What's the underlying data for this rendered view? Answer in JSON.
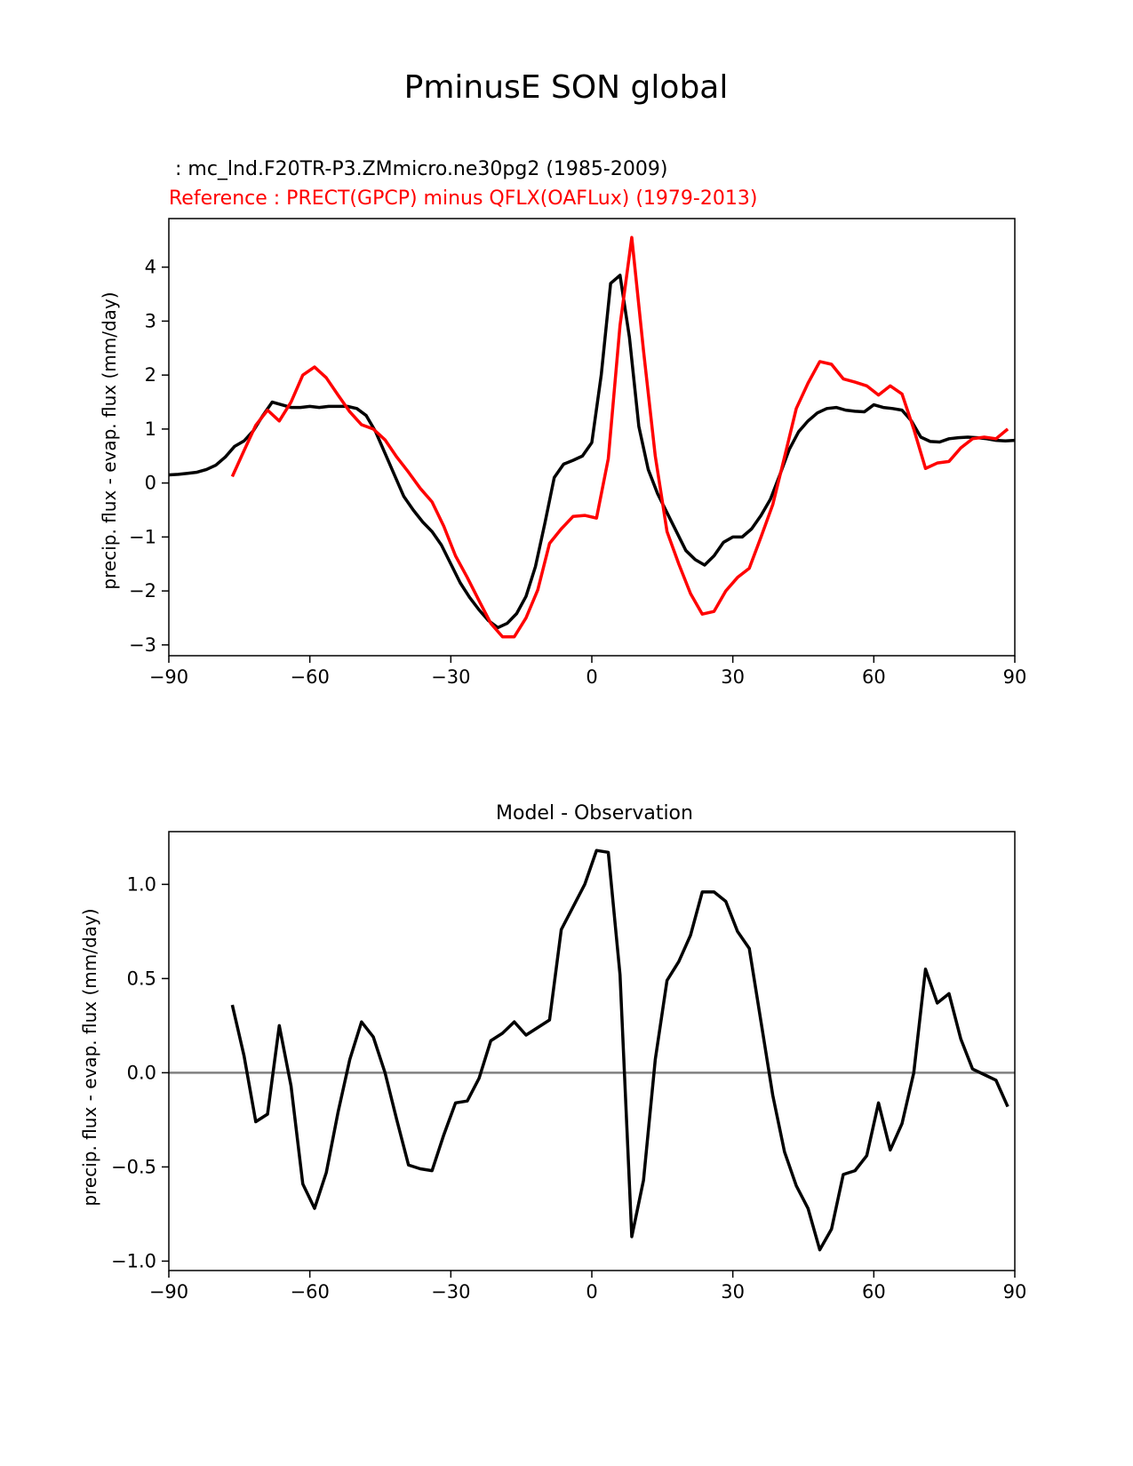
{
  "figure": {
    "suptitle": "PminusE SON global"
  },
  "chart_data": [
    {
      "type": "line",
      "title_test": " : mc_lnd.F20TR-P3.ZMmicro.ne30pg2 (1985-2009)",
      "title_ref": "Reference : PRECT(GPCP) minus QFLX(OAFLux) (1979-2013)",
      "xlabel": "",
      "ylabel": "precip. flux - evap. flux (mm/day)",
      "xlim": [
        -90,
        90
      ],
      "ylim": [
        -3.2,
        4.9
      ],
      "xticks": [
        -90,
        -60,
        -30,
        0,
        30,
        60,
        90
      ],
      "xtick_labels": [
        "−90",
        "−60",
        "−30",
        "0",
        "30",
        "60",
        "90"
      ],
      "yticks": [
        -3,
        -2,
        -1,
        0,
        1,
        2,
        3,
        4
      ],
      "ytick_labels": [
        "−3",
        "−2",
        "−1",
        "0",
        "1",
        "2",
        "3",
        "4"
      ],
      "series": [
        {
          "name": "test",
          "color": "#000000",
          "x": [
            -90,
            -88,
            -86,
            -84,
            -82,
            -80,
            -78,
            -76,
            -74,
            -72,
            -70,
            -68,
            -66,
            -64,
            -62,
            -60,
            -58,
            -56,
            -54,
            -52,
            -50,
            -48,
            -46,
            -44,
            -42,
            -40,
            -38,
            -36,
            -34,
            -32,
            -30,
            -28,
            -26,
            -24,
            -22,
            -20,
            -18,
            -16,
            -14,
            -12,
            -10,
            -8,
            -6,
            -4,
            -2,
            0,
            2,
            4,
            6,
            8,
            10,
            12,
            14,
            16,
            18,
            20,
            22,
            24,
            26,
            28,
            30,
            32,
            34,
            36,
            38,
            40,
            42,
            44,
            46,
            48,
            50,
            52,
            54,
            56,
            58,
            60,
            62,
            64,
            66,
            68,
            70,
            72,
            74,
            76,
            78,
            80,
            82,
            84,
            86,
            88,
            90
          ],
          "values": [
            0.15,
            0.16,
            0.18,
            0.2,
            0.25,
            0.33,
            0.48,
            0.68,
            0.78,
            0.97,
            1.25,
            1.5,
            1.45,
            1.4,
            1.4,
            1.42,
            1.4,
            1.42,
            1.42,
            1.42,
            1.38,
            1.25,
            0.95,
            0.55,
            0.15,
            -0.25,
            -0.5,
            -0.72,
            -0.9,
            -1.15,
            -1.5,
            -1.85,
            -2.12,
            -2.35,
            -2.55,
            -2.68,
            -2.6,
            -2.42,
            -2.1,
            -1.55,
            -0.75,
            0.1,
            0.35,
            0.42,
            0.5,
            0.75,
            2.0,
            3.7,
            3.85,
            2.7,
            1.05,
            0.25,
            -0.2,
            -0.55,
            -0.9,
            -1.25,
            -1.42,
            -1.52,
            -1.35,
            -1.1,
            -1.0,
            -1.0,
            -0.85,
            -0.6,
            -0.3,
            0.15,
            0.62,
            0.95,
            1.15,
            1.3,
            1.38,
            1.4,
            1.35,
            1.33,
            1.32,
            1.45,
            1.4,
            1.38,
            1.35,
            1.15,
            0.85,
            0.77,
            0.76,
            0.82,
            0.84,
            0.85,
            0.84,
            0.82,
            0.79,
            0.78,
            0.79
          ]
        },
        {
          "name": "reference",
          "color": "#ff0000",
          "x": [
            -76.5,
            -74,
            -71.5,
            -69,
            -66.5,
            -64,
            -61.5,
            -59,
            -56.5,
            -54,
            -51.5,
            -49,
            -46.5,
            -44,
            -41.5,
            -39,
            -36.5,
            -34,
            -31.5,
            -29,
            -26.5,
            -24,
            -21.5,
            -19,
            -16.5,
            -14,
            -11.5,
            -9,
            -6.5,
            -4,
            -1.5,
            1,
            3.5,
            6,
            8.5,
            11,
            13.5,
            16,
            18.5,
            21,
            23.5,
            26,
            28.5,
            31,
            33.5,
            36,
            38.5,
            41,
            43.5,
            46,
            48.5,
            51,
            53.5,
            56,
            58.5,
            61,
            63.5,
            66,
            68.5,
            71,
            73.5,
            76,
            78.5,
            81,
            83.5,
            86,
            88.5
          ],
          "values": [
            0.12,
            0.6,
            1.07,
            1.35,
            1.15,
            1.5,
            2.0,
            2.15,
            1.95,
            1.63,
            1.32,
            1.08,
            1.0,
            0.8,
            0.48,
            0.2,
            -0.1,
            -0.35,
            -0.8,
            -1.35,
            -1.75,
            -2.18,
            -2.6,
            -2.85,
            -2.85,
            -2.5,
            -1.98,
            -1.12,
            -0.85,
            -0.62,
            -0.6,
            -0.65,
            0.45,
            2.92,
            4.55,
            2.45,
            0.5,
            -0.9,
            -1.5,
            -2.05,
            -2.43,
            -2.38,
            -2.0,
            -1.75,
            -1.58,
            -1.0,
            -0.4,
            0.48,
            1.38,
            1.85,
            2.25,
            2.2,
            1.93,
            1.87,
            1.8,
            1.63,
            1.8,
            1.65,
            1.0,
            0.27,
            0.37,
            0.4,
            0.65,
            0.82,
            0.85,
            0.82,
            1.0
          ]
        }
      ]
    },
    {
      "type": "line",
      "title": "Model - Observation",
      "xlabel": "",
      "ylabel": "precip. flux - evap. flux (mm/day)",
      "xlim": [
        -90,
        90
      ],
      "ylim": [
        -1.05,
        1.28
      ],
      "xticks": [
        -90,
        -60,
        -30,
        0,
        30,
        60,
        90
      ],
      "xtick_labels": [
        "−90",
        "−60",
        "−30",
        "0",
        "30",
        "60",
        "90"
      ],
      "yticks": [
        -1.0,
        -0.5,
        0.0,
        0.5,
        1.0
      ],
      "ytick_labels": [
        "−1.0",
        "−0.5",
        "0.0",
        "0.5",
        "1.0"
      ],
      "zero_line_color": "#808080",
      "series": [
        {
          "name": "difference",
          "color": "#000000",
          "x": [
            -76.5,
            -74,
            -71.5,
            -69,
            -66.5,
            -64,
            -61.5,
            -59,
            -56.5,
            -54,
            -51.5,
            -49,
            -46.5,
            -44,
            -41.5,
            -39,
            -36.5,
            -34,
            -31.5,
            -29,
            -26.5,
            -24,
            -21.5,
            -19,
            -16.5,
            -14,
            -11.5,
            -9,
            -6.5,
            -4,
            -1.5,
            1,
            3.5,
            6,
            8.5,
            11,
            13.5,
            16,
            18.5,
            21,
            23.5,
            26,
            28.5,
            31,
            33.5,
            36,
            38.5,
            41,
            43.5,
            46,
            48.5,
            51,
            53.5,
            56,
            58.5,
            61,
            63.5,
            66,
            68.5,
            71,
            73.5,
            76,
            78.5,
            81,
            83.5,
            86,
            88.5
          ],
          "values": [
            0.36,
            0.09,
            -0.26,
            -0.22,
            0.25,
            -0.07,
            -0.59,
            -0.72,
            -0.53,
            -0.21,
            0.07,
            0.27,
            0.19,
            0.0,
            -0.25,
            -0.49,
            -0.51,
            -0.52,
            -0.33,
            -0.16,
            -0.15,
            -0.03,
            0.17,
            0.21,
            0.27,
            0.2,
            0.24,
            0.28,
            0.76,
            0.88,
            1.0,
            1.18,
            1.17,
            0.52,
            -0.87,
            -0.57,
            0.07,
            0.49,
            0.59,
            0.73,
            0.96,
            0.96,
            0.91,
            0.75,
            0.66,
            0.27,
            -0.12,
            -0.42,
            -0.6,
            -0.72,
            -0.94,
            -0.83,
            -0.54,
            -0.52,
            -0.44,
            -0.16,
            -0.41,
            -0.27,
            0.0,
            0.55,
            0.37,
            0.42,
            0.18,
            0.02,
            -0.01,
            -0.04,
            -0.18
          ]
        }
      ]
    }
  ]
}
